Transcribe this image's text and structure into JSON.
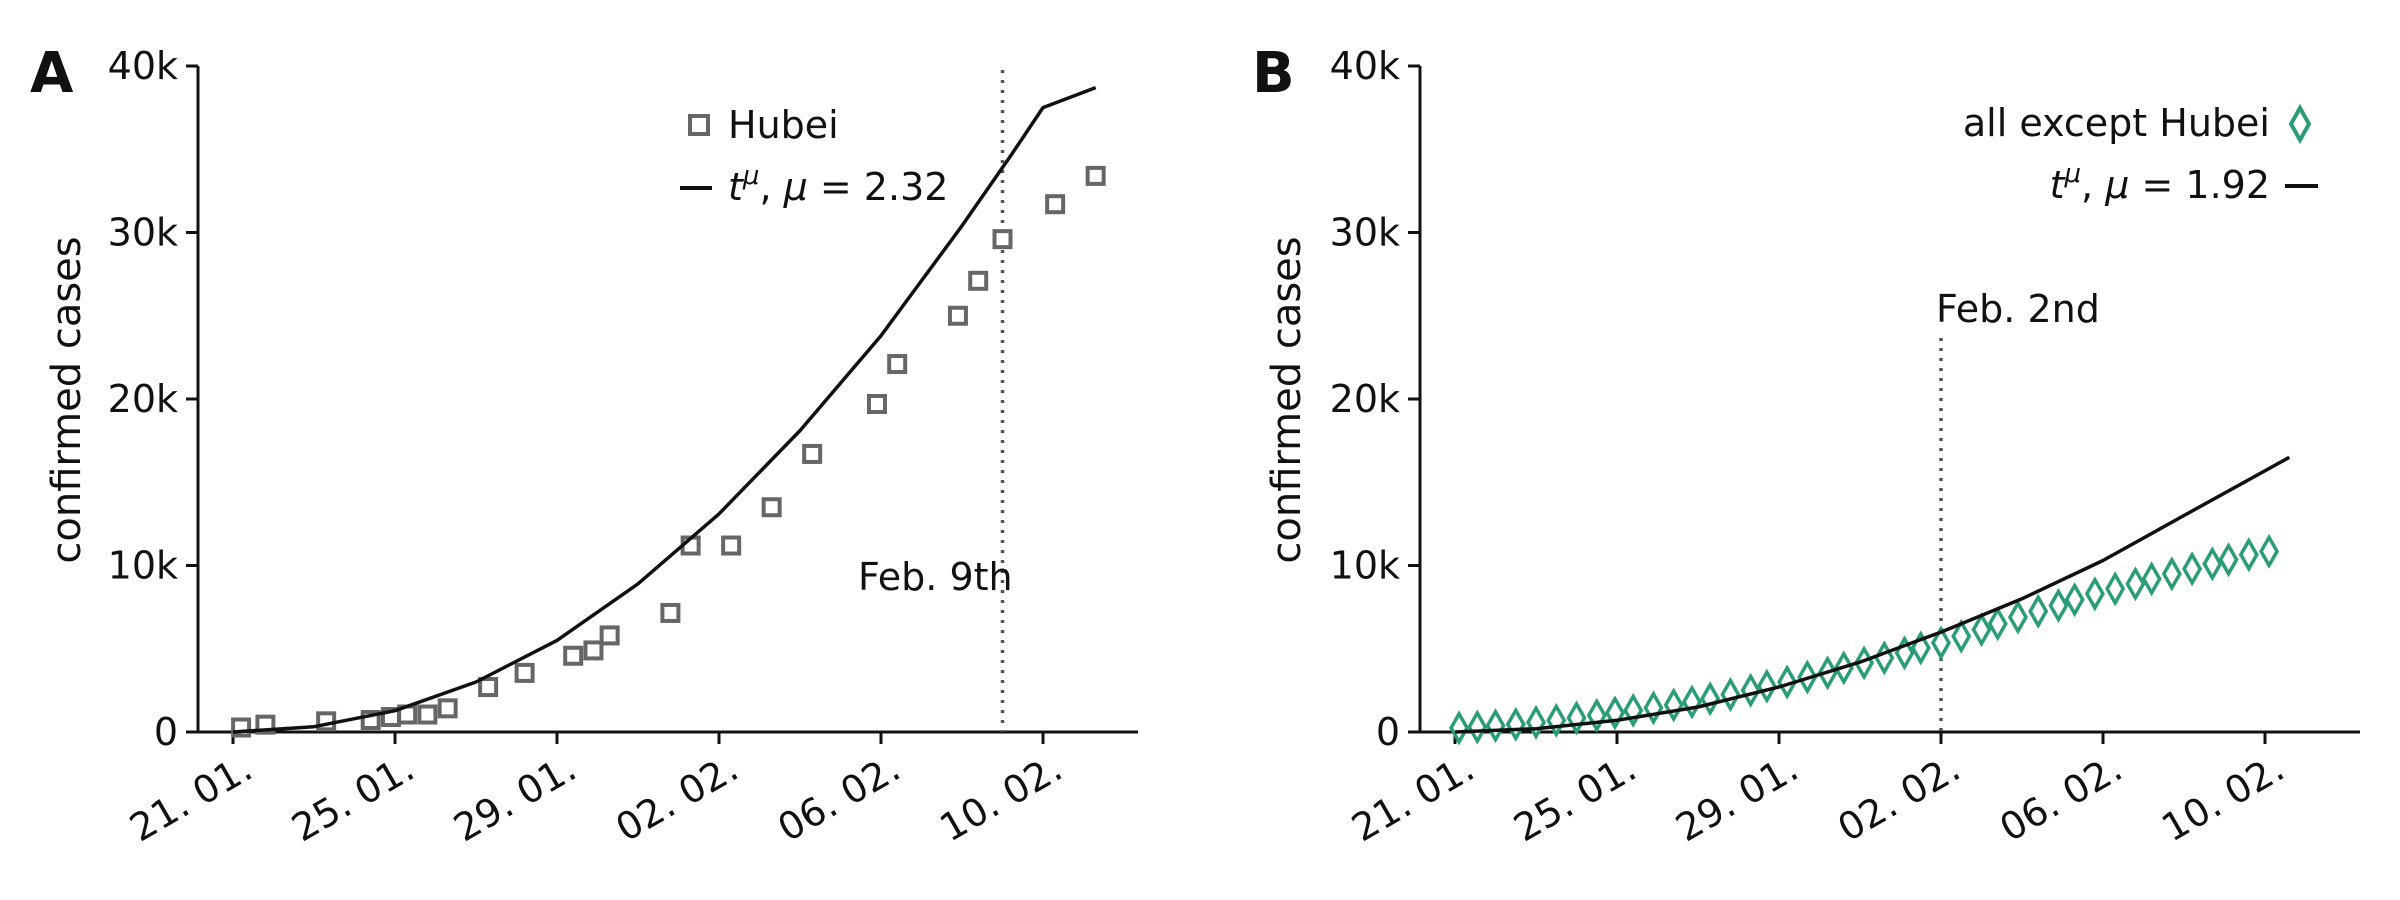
{
  "chart_data": [
    {
      "type": "scatter",
      "panel_label": "A",
      "ylabel": "confirmed cases",
      "xlabel": "",
      "ylim": [
        0,
        40000
      ],
      "xlim": [
        -1,
        22.5
      ],
      "x_ticks": [
        0,
        4,
        8,
        12,
        16,
        20
      ],
      "x_tick_labels": [
        "21. 01.",
        "25. 01.",
        "29. 01.",
        "02. 02.",
        "06. 02.",
        "10. 02."
      ],
      "y_ticks": [
        0,
        10000,
        20000,
        30000,
        40000
      ],
      "y_tick_labels": [
        "0",
        "10k",
        "20k",
        "30k",
        "40k"
      ],
      "series": [
        {
          "name": "Hubei",
          "kind": "markers",
          "marker": "square",
          "color": "#666666",
          "x": [
            0.2,
            0.8,
            2.3,
            3.4,
            3.9,
            4.3,
            4.8,
            5.3,
            6.3,
            7.2,
            8.4,
            8.9,
            9.3,
            10.8,
            11.3,
            12.3,
            13.3,
            14.3,
            15.9,
            16.4,
            17.9,
            18.4,
            19.0,
            20.3,
            21.3
          ],
          "y": [
            270,
            440,
            640,
            720,
            900,
            1050,
            1050,
            1420,
            2700,
            3550,
            4580,
            4900,
            5800,
            7150,
            11200,
            11200,
            13500,
            16700,
            19700,
            22100,
            25000,
            27100,
            29600,
            31700,
            33400
          ]
        },
        {
          "name": "t^μ, μ = 2.32",
          "kind": "line",
          "color": "#111111",
          "mu": 2.32,
          "x": [
            0,
            2,
            4,
            6,
            8,
            10,
            12,
            14,
            16,
            18,
            19.2,
            20,
            21.3
          ],
          "y": [
            0,
            320,
            1280,
            3000,
            5500,
            8900,
            13100,
            18100,
            23800,
            30400,
            34600,
            37500,
            38700
          ]
        }
      ],
      "vline": {
        "x": 19.0,
        "label": "Feb. 9th"
      },
      "legend": {
        "placement": "top-right",
        "entries": [
          "Hubei",
          "t^μ, μ = 2.32"
        ]
      }
    },
    {
      "type": "scatter",
      "panel_label": "B",
      "ylabel": "confirmed cases",
      "xlabel": "",
      "ylim": [
        0,
        40000
      ],
      "xlim": [
        -1,
        22.5
      ],
      "x_ticks": [
        0,
        4,
        8,
        12,
        16,
        20
      ],
      "x_tick_labels": [
        "21. 01.",
        "25. 01.",
        "29. 01.",
        "02. 02.",
        "06. 02.",
        "10. 02."
      ],
      "y_ticks": [
        0,
        10000,
        20000,
        30000,
        40000
      ],
      "y_tick_labels": [
        "0",
        "10k",
        "20k",
        "30k",
        "40k"
      ],
      "series": [
        {
          "name": "all except Hubei",
          "kind": "markers",
          "marker": "diamond",
          "color": "#2a9d78",
          "x": [
            0.1,
            0.55,
            1.0,
            1.5,
            2.0,
            2.5,
            3.0,
            3.5,
            3.95,
            4.4,
            4.9,
            5.4,
            5.85,
            6.3,
            6.8,
            7.3,
            7.7,
            8.2,
            8.7,
            9.2,
            9.6,
            10.1,
            10.6,
            11.1,
            11.5,
            12.0,
            12.5,
            13.0,
            13.4,
            13.9,
            14.4,
            14.9,
            15.3,
            15.8,
            16.3,
            16.8,
            17.2,
            17.7,
            18.2,
            18.7,
            19.1,
            19.6,
            20.1
          ],
          "y": [
            250,
            300,
            380,
            460,
            580,
            700,
            850,
            1000,
            1150,
            1300,
            1450,
            1620,
            1800,
            2000,
            2250,
            2500,
            2750,
            3000,
            3300,
            3550,
            3850,
            4150,
            4450,
            4750,
            5050,
            5350,
            5750,
            6150,
            6500,
            6900,
            7250,
            7600,
            7950,
            8300,
            8600,
            8900,
            9200,
            9500,
            9800,
            10100,
            10350,
            10650,
            10850
          ]
        },
        {
          "name": "t^μ, μ = 1.92",
          "kind": "line",
          "color": "#111111",
          "mu": 1.92,
          "x": [
            0,
            2,
            4,
            6,
            8,
            10,
            12,
            14,
            16,
            18,
            20.6
          ],
          "y": [
            0,
            200,
            700,
            1500,
            2700,
            4200,
            6000,
            8000,
            10300,
            13000,
            16500
          ]
        }
      ],
      "vline": {
        "x": 12.0,
        "label": "Feb. 2nd"
      },
      "legend": {
        "placement": "top-right",
        "entries": [
          "all except Hubei",
          "t^μ, μ = 1.92"
        ]
      }
    }
  ]
}
